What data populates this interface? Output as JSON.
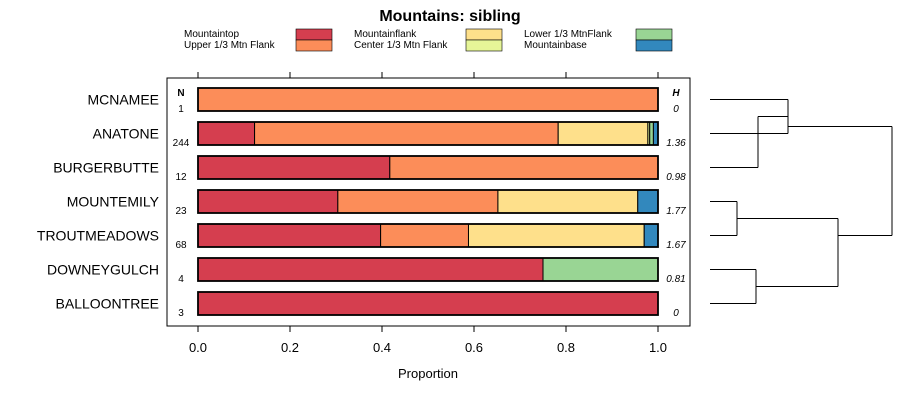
{
  "chart_data": {
    "type": "bar",
    "orientation": "horizontal",
    "stacked": true,
    "title": "Mountains: sibling",
    "xlabel": "Proportion",
    "xlim": [
      0,
      1
    ],
    "xticks": [
      "0.0",
      "0.2",
      "0.4",
      "0.6",
      "0.8",
      "1.0"
    ],
    "xtick_values": [
      0,
      0.2,
      0.4,
      0.6,
      0.8,
      1.0
    ],
    "n_header": "N",
    "h_header": "H",
    "legend": [
      {
        "name": "Mountaintop",
        "color": "#d53e4f"
      },
      {
        "name": "Upper 1/3 Mtn Flank",
        "color": "#fc8d59"
      },
      {
        "name": "Mountainflank",
        "color": "#fee08b"
      },
      {
        "name": "Center 1/3 Mtn Flank",
        "color": "#e6f598"
      },
      {
        "name": "Lower 1/3 MtnFlank",
        "color": "#99d594"
      },
      {
        "name": "Mountainbase",
        "color": "#3288bd"
      }
    ],
    "rows": [
      {
        "label": "MCNAMEE",
        "n": "1",
        "h": "0",
        "values": [
          0,
          1.0,
          0,
          0,
          0,
          0
        ]
      },
      {
        "label": "ANATONE",
        "n": "244",
        "h": "1.36",
        "values": [
          0.123,
          0.66,
          0.195,
          0.004,
          0.008,
          0.01
        ]
      },
      {
        "label": "BURGERBUTTE",
        "n": "12",
        "h": "0.98",
        "values": [
          0.417,
          0.583,
          0,
          0,
          0,
          0
        ]
      },
      {
        "label": "MOUNTEMILY",
        "n": "23",
        "h": "1.77",
        "values": [
          0.304,
          0.348,
          0.304,
          0,
          0,
          0.044
        ]
      },
      {
        "label": "TROUTMEADOWS",
        "n": "68",
        "h": "1.67",
        "values": [
          0.397,
          0.191,
          0.382,
          0,
          0,
          0.03
        ]
      },
      {
        "label": "DOWNEYGULCH",
        "n": "4",
        "h": "0.81",
        "values": [
          0.75,
          0,
          0,
          0,
          0.25,
          0
        ]
      },
      {
        "label": "BALLOONTREE",
        "n": "3",
        "h": "0",
        "values": [
          1.0,
          0,
          0,
          0,
          0,
          0
        ]
      }
    ],
    "dendrogram": "(((MCNAMEE,ANATONE),BURGERBUTTE),((MOUNTEMILY,TROUTMEADOWS),(DOWNEYGULCH,BALLOONTREE)))"
  }
}
